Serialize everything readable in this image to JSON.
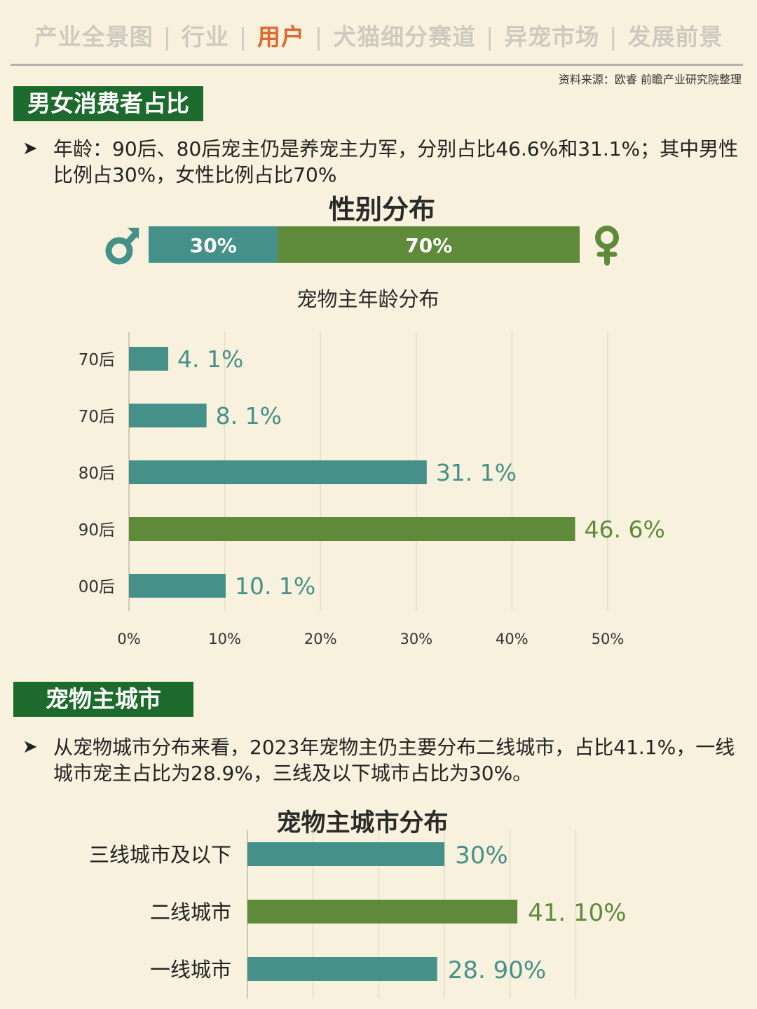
{
  "nav": {
    "items": [
      "产业全景图",
      "行业",
      "用户",
      "犬猫细分赛道",
      "异宠市场",
      "发展前景"
    ],
    "active_index": 2,
    "separator": "|"
  },
  "source": "资料来源：欧睿 前瞻产业研究院整理",
  "section1": {
    "tag": "男女消费者占比",
    "bullet_symbol": "➤",
    "text": "年龄：90后、80后宠主仍是养宠主力军，分别占比46.6%和31.1%；其中男性比例占30%，女性比例占比70%"
  },
  "section2": {
    "tag": "宠物主城市",
    "bullet_symbol": "➤",
    "text": "从宠物城市分布来看，2023年宠物主仍主要分布二线城市，占比41.1%，一线城市宠主占比为28.9%，三线及以下城市占比为30%。"
  },
  "colors": {
    "teal": "#45918a",
    "green": "#5e8a3a",
    "tag_bg": "#1d6b2c",
    "active_nav": "#e2672c",
    "background": "#f7f1dd"
  },
  "chart_data": [
    {
      "type": "bar",
      "orientation": "stacked-horizontal",
      "title": "性别分布",
      "icons": {
        "left": "male-symbol-icon",
        "right": "female-symbol-icon"
      },
      "series": [
        {
          "name": "男",
          "value": 30,
          "label": "30%",
          "color": "#45918a"
        },
        {
          "name": "女",
          "value": 70,
          "label": "70%",
          "color": "#5e8a3a"
        }
      ]
    },
    {
      "type": "bar",
      "orientation": "horizontal",
      "title": "宠物主年龄分布",
      "categories": [
        "70后",
        "70后",
        "80后",
        "90后",
        "00后"
      ],
      "values": [
        4.1,
        8.1,
        31.1,
        46.6,
        10.1
      ],
      "labels": [
        "4. 1%",
        "8. 1%",
        "31. 1%",
        "46. 6%",
        "10. 1%"
      ],
      "colors": [
        "#45918a",
        "#45918a",
        "#45918a",
        "#5e8a3a",
        "#45918a"
      ],
      "xlim": [
        0,
        50
      ],
      "xticks": [
        "0%",
        "10%",
        "20%",
        "30%",
        "40%",
        "50%"
      ],
      "grid": true
    },
    {
      "type": "bar",
      "orientation": "horizontal",
      "title": "宠物主城市分布",
      "categories": [
        "三线城市及以下",
        "二线城市",
        "一线城市"
      ],
      "values": [
        30,
        41.1,
        28.9
      ],
      "labels": [
        "30%",
        "41. 10%",
        "28. 90%"
      ],
      "colors": [
        "#45918a",
        "#5e8a3a",
        "#45918a"
      ],
      "grid": true
    }
  ]
}
